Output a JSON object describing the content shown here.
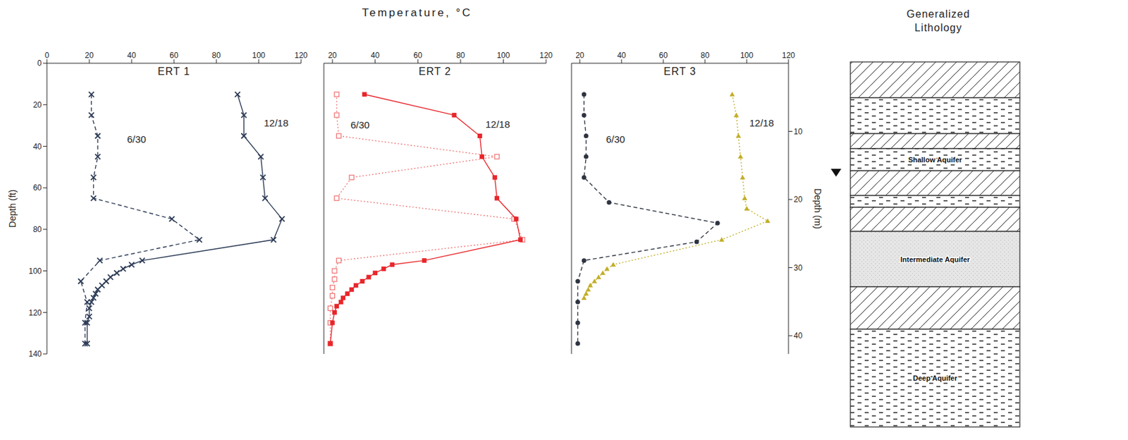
{
  "title": "Temperature, °C",
  "chart_data": [
    {
      "type": "line",
      "title": "ERT 1",
      "y_label": "Depth (ft)",
      "xlim": [
        0,
        120
      ],
      "xticks": [
        0,
        20,
        40,
        60,
        80,
        100,
        120
      ],
      "ylim": [
        0,
        140
      ],
      "yticks": [
        0,
        20,
        40,
        60,
        80,
        100,
        120,
        140
      ],
      "series": [
        {
          "name": "6/30",
          "color": "#2b3a55",
          "marker": "x",
          "line_style": "dashed",
          "x": [
            21,
            21,
            24,
            24,
            22,
            22,
            59,
            72,
            25,
            16,
            19,
            18,
            18
          ],
          "y": [
            15,
            25,
            35,
            45,
            55,
            65,
            75,
            85,
            95,
            105,
            115,
            125,
            135
          ]
        },
        {
          "name": "12/18",
          "color": "#2b3a55",
          "marker": "x",
          "line_style": "solid",
          "x": [
            90,
            93,
            93,
            101,
            102,
            103,
            111,
            107,
            45,
            40,
            36,
            33,
            30,
            28,
            26,
            24,
            23,
            22,
            21,
            20,
            20,
            19,
            19
          ],
          "y": [
            15,
            25,
            35,
            45,
            55,
            65,
            75,
            85,
            95,
            97,
            99,
            101,
            103,
            105,
            107,
            109,
            111,
            113,
            115,
            118,
            122,
            125,
            135
          ]
        }
      ]
    },
    {
      "type": "line",
      "title": "ERT 2",
      "tick_labels": "x",
      "xlim": [
        16,
        120
      ],
      "xticks": [
        20,
        40,
        60,
        80,
        100,
        120
      ],
      "ylim": [
        0,
        140
      ],
      "series": [
        {
          "name": "6/30",
          "color": "#f07878",
          "marker": "open_square",
          "line_style": "dotted",
          "x": [
            22,
            22,
            23,
            97,
            29,
            22,
            105,
            109,
            23,
            21,
            21,
            20,
            20,
            19,
            19,
            19
          ],
          "y": [
            15,
            25,
            35,
            45,
            55,
            65,
            75,
            85,
            95,
            100,
            104,
            108,
            112,
            118,
            125,
            135
          ]
        },
        {
          "name": "12/18",
          "color": "#e8262b",
          "marker": "square",
          "line_style": "solid",
          "x": [
            35,
            77,
            89,
            90,
            96,
            97,
            106,
            108,
            63,
            48,
            44,
            40,
            37,
            34,
            31,
            29,
            27,
            25,
            24,
            22,
            21,
            20,
            19
          ],
          "y": [
            15,
            25,
            35,
            45,
            55,
            65,
            75,
            85,
            95,
            97,
            99,
            101,
            103,
            105,
            107,
            109,
            111,
            113,
            115,
            117,
            120,
            125,
            135
          ]
        }
      ]
    },
    {
      "type": "line",
      "title": "ERT 3",
      "tick_labels": "x",
      "xlim": [
        16,
        120
      ],
      "xticks": [
        20,
        40,
        60,
        80,
        100,
        120
      ],
      "ylim": [
        0,
        140
      ],
      "y2_label": "Depth (m)",
      "y2lim": [
        0,
        42.67
      ],
      "y2ticks": [
        10,
        20,
        30,
        40
      ],
      "series": [
        {
          "name": "6/30",
          "color": "#2e3440",
          "marker": "circle",
          "line_style": "dashed",
          "x": [
            22,
            22,
            23,
            23,
            22,
            34,
            86,
            76,
            22,
            19,
            19,
            19,
            19
          ],
          "y": [
            15,
            25,
            35,
            45,
            55,
            67,
            77,
            86,
            95,
            105,
            115,
            125,
            135
          ]
        },
        {
          "name": "12/18",
          "color": "#c2ae28",
          "marker": "triangle",
          "line_style": "dotted",
          "x": [
            93,
            95,
            96,
            97,
            98,
            99,
            100,
            110,
            88,
            36,
            33,
            31,
            29,
            27,
            25,
            24,
            23,
            22
          ],
          "y": [
            15,
            25,
            35,
            45,
            55,
            65,
            70,
            76,
            85,
            97,
            99,
            101,
            103,
            105,
            107,
            109,
            111,
            113
          ]
        }
      ]
    }
  ],
  "lithology": {
    "title": "Generalized Lithology",
    "units": [
      "Shallow Aquifer",
      "Intermediate Aquifer",
      "Deep Aquifer"
    ]
  }
}
